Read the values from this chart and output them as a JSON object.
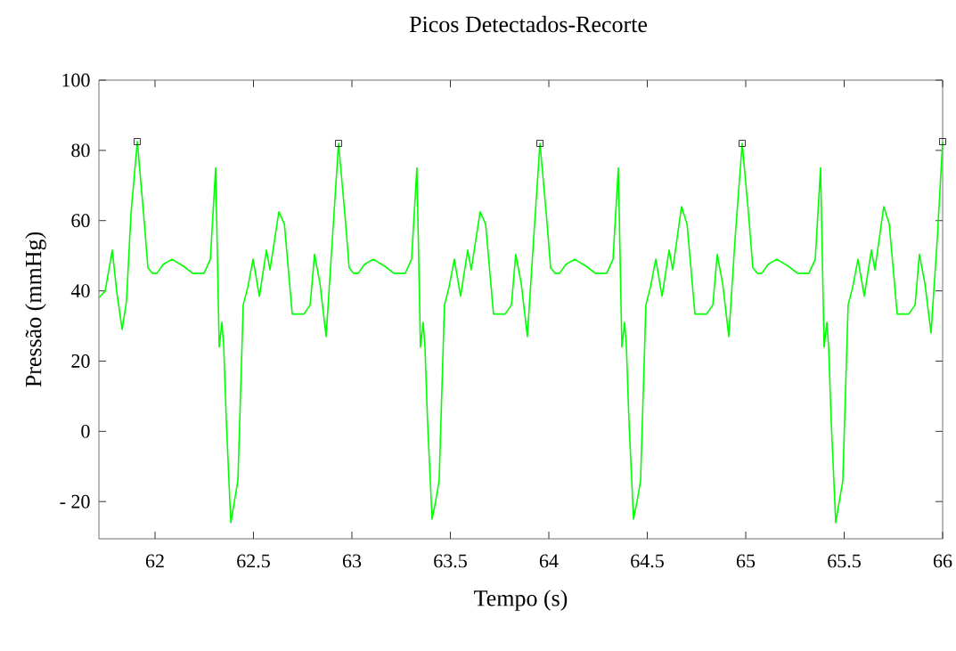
{
  "chart_data": {
    "type": "line",
    "title": "Picos Detectados-Recorte",
    "xlabel": "Tempo (s)",
    "ylabel": "Pressão (mmHg)",
    "xlim": [
      61.715,
      66.0
    ],
    "ylim": [
      -30.6,
      100
    ],
    "xticks": [
      62,
      62.5,
      63,
      63.5,
      64,
      64.5,
      65,
      65.5,
      66
    ],
    "yticks": [
      {
        "value": -20,
        "label": "- 20"
      },
      0,
      20,
      40,
      60,
      80,
      100
    ],
    "grid": false,
    "marker": "none",
    "series": [
      {
        "color": "#00ff00",
        "x": [
          61.715,
          61.747,
          61.783,
          61.805,
          61.833,
          61.855,
          61.878,
          61.91,
          61.942,
          61.964,
          61.987,
          62.01,
          62.041,
          62.086,
          62.145,
          62.191,
          62.249,
          62.281,
          62.308,
          62.326,
          62.34,
          62.349,
          62.362,
          62.385,
          62.403,
          62.421,
          62.448,
          62.471,
          62.498,
          62.53,
          62.566,
          62.584,
          62.629,
          62.657,
          62.697,
          62.756,
          62.788,
          62.81,
          62.838,
          62.869,
          62.901,
          62.932,
          62.964,
          62.986,
          63.009,
          63.032,
          63.063,
          63.108,
          63.167,
          63.213,
          63.271,
          63.303,
          63.33,
          63.348,
          63.362,
          63.371,
          63.384,
          63.407,
          63.425,
          63.443,
          63.47,
          63.493,
          63.52,
          63.552,
          63.588,
          63.606,
          63.651,
          63.679,
          63.719,
          63.778,
          63.81,
          63.832,
          63.86,
          63.891,
          63.923,
          63.955,
          63.987,
          64.009,
          64.032,
          64.055,
          64.086,
          64.131,
          64.19,
          64.236,
          64.294,
          64.326,
          64.353,
          64.371,
          64.385,
          64.394,
          64.407,
          64.43,
          64.448,
          64.466,
          64.493,
          64.516,
          64.543,
          64.575,
          64.611,
          64.629,
          64.674,
          64.702,
          64.742,
          64.801,
          64.833,
          64.855,
          64.883,
          64.914,
          64.946,
          64.982,
          65.014,
          65.036,
          65.059,
          65.082,
          65.113,
          65.158,
          65.217,
          65.263,
          65.321,
          65.353,
          65.38,
          65.398,
          65.412,
          65.421,
          65.434,
          65.457,
          65.475,
          65.493,
          65.52,
          65.543,
          65.57,
          65.602,
          65.638,
          65.656,
          65.701,
          65.729,
          65.769,
          65.828,
          65.86,
          65.882,
          65.91,
          65.941,
          65.973,
          66.0
        ],
        "values": [
          38,
          40,
          51.6,
          40,
          29,
          37,
          62,
          82.5,
          62,
          46.6,
          45,
          45,
          47.5,
          49,
          47,
          45,
          45,
          49,
          75,
          24,
          31,
          24,
          3,
          -26,
          -20,
          -14,
          36,
          41,
          49,
          38.5,
          51.6,
          46,
          62.5,
          59,
          33.4,
          33.4,
          36,
          50.4,
          42,
          27,
          55,
          82,
          62,
          46.6,
          45,
          45,
          47.5,
          49,
          47,
          45,
          45,
          49,
          75,
          24,
          31,
          24,
          3,
          -25,
          -20,
          -14,
          36,
          41,
          49,
          38.5,
          51.6,
          46,
          62.5,
          59,
          33.4,
          33.4,
          36,
          50.4,
          42,
          27,
          55,
          82,
          62,
          46.6,
          45,
          45,
          47.5,
          49,
          47,
          45,
          45,
          49,
          75,
          24,
          31,
          24,
          3,
          -25,
          -20,
          -14,
          36,
          41,
          49,
          38.5,
          51.6,
          46,
          64,
          59,
          33.4,
          33.4,
          36,
          50.4,
          42,
          27,
          55,
          82,
          62,
          46.6,
          45,
          45,
          47.5,
          49,
          47,
          45,
          45,
          49,
          75,
          24,
          31,
          24,
          3,
          -26,
          -20,
          -14,
          36,
          41,
          49,
          38.5,
          51.6,
          46,
          64,
          59,
          33.4,
          33.4,
          36,
          50.4,
          42,
          28,
          55,
          82.5
        ]
      },
      {
        "type": "scatter",
        "marker": "square",
        "color": "#000000",
        "x": [
          61.91,
          62.932,
          63.955,
          64.982,
          66.0
        ],
        "values": [
          82.5,
          82,
          82,
          82,
          82.5
        ]
      }
    ]
  }
}
